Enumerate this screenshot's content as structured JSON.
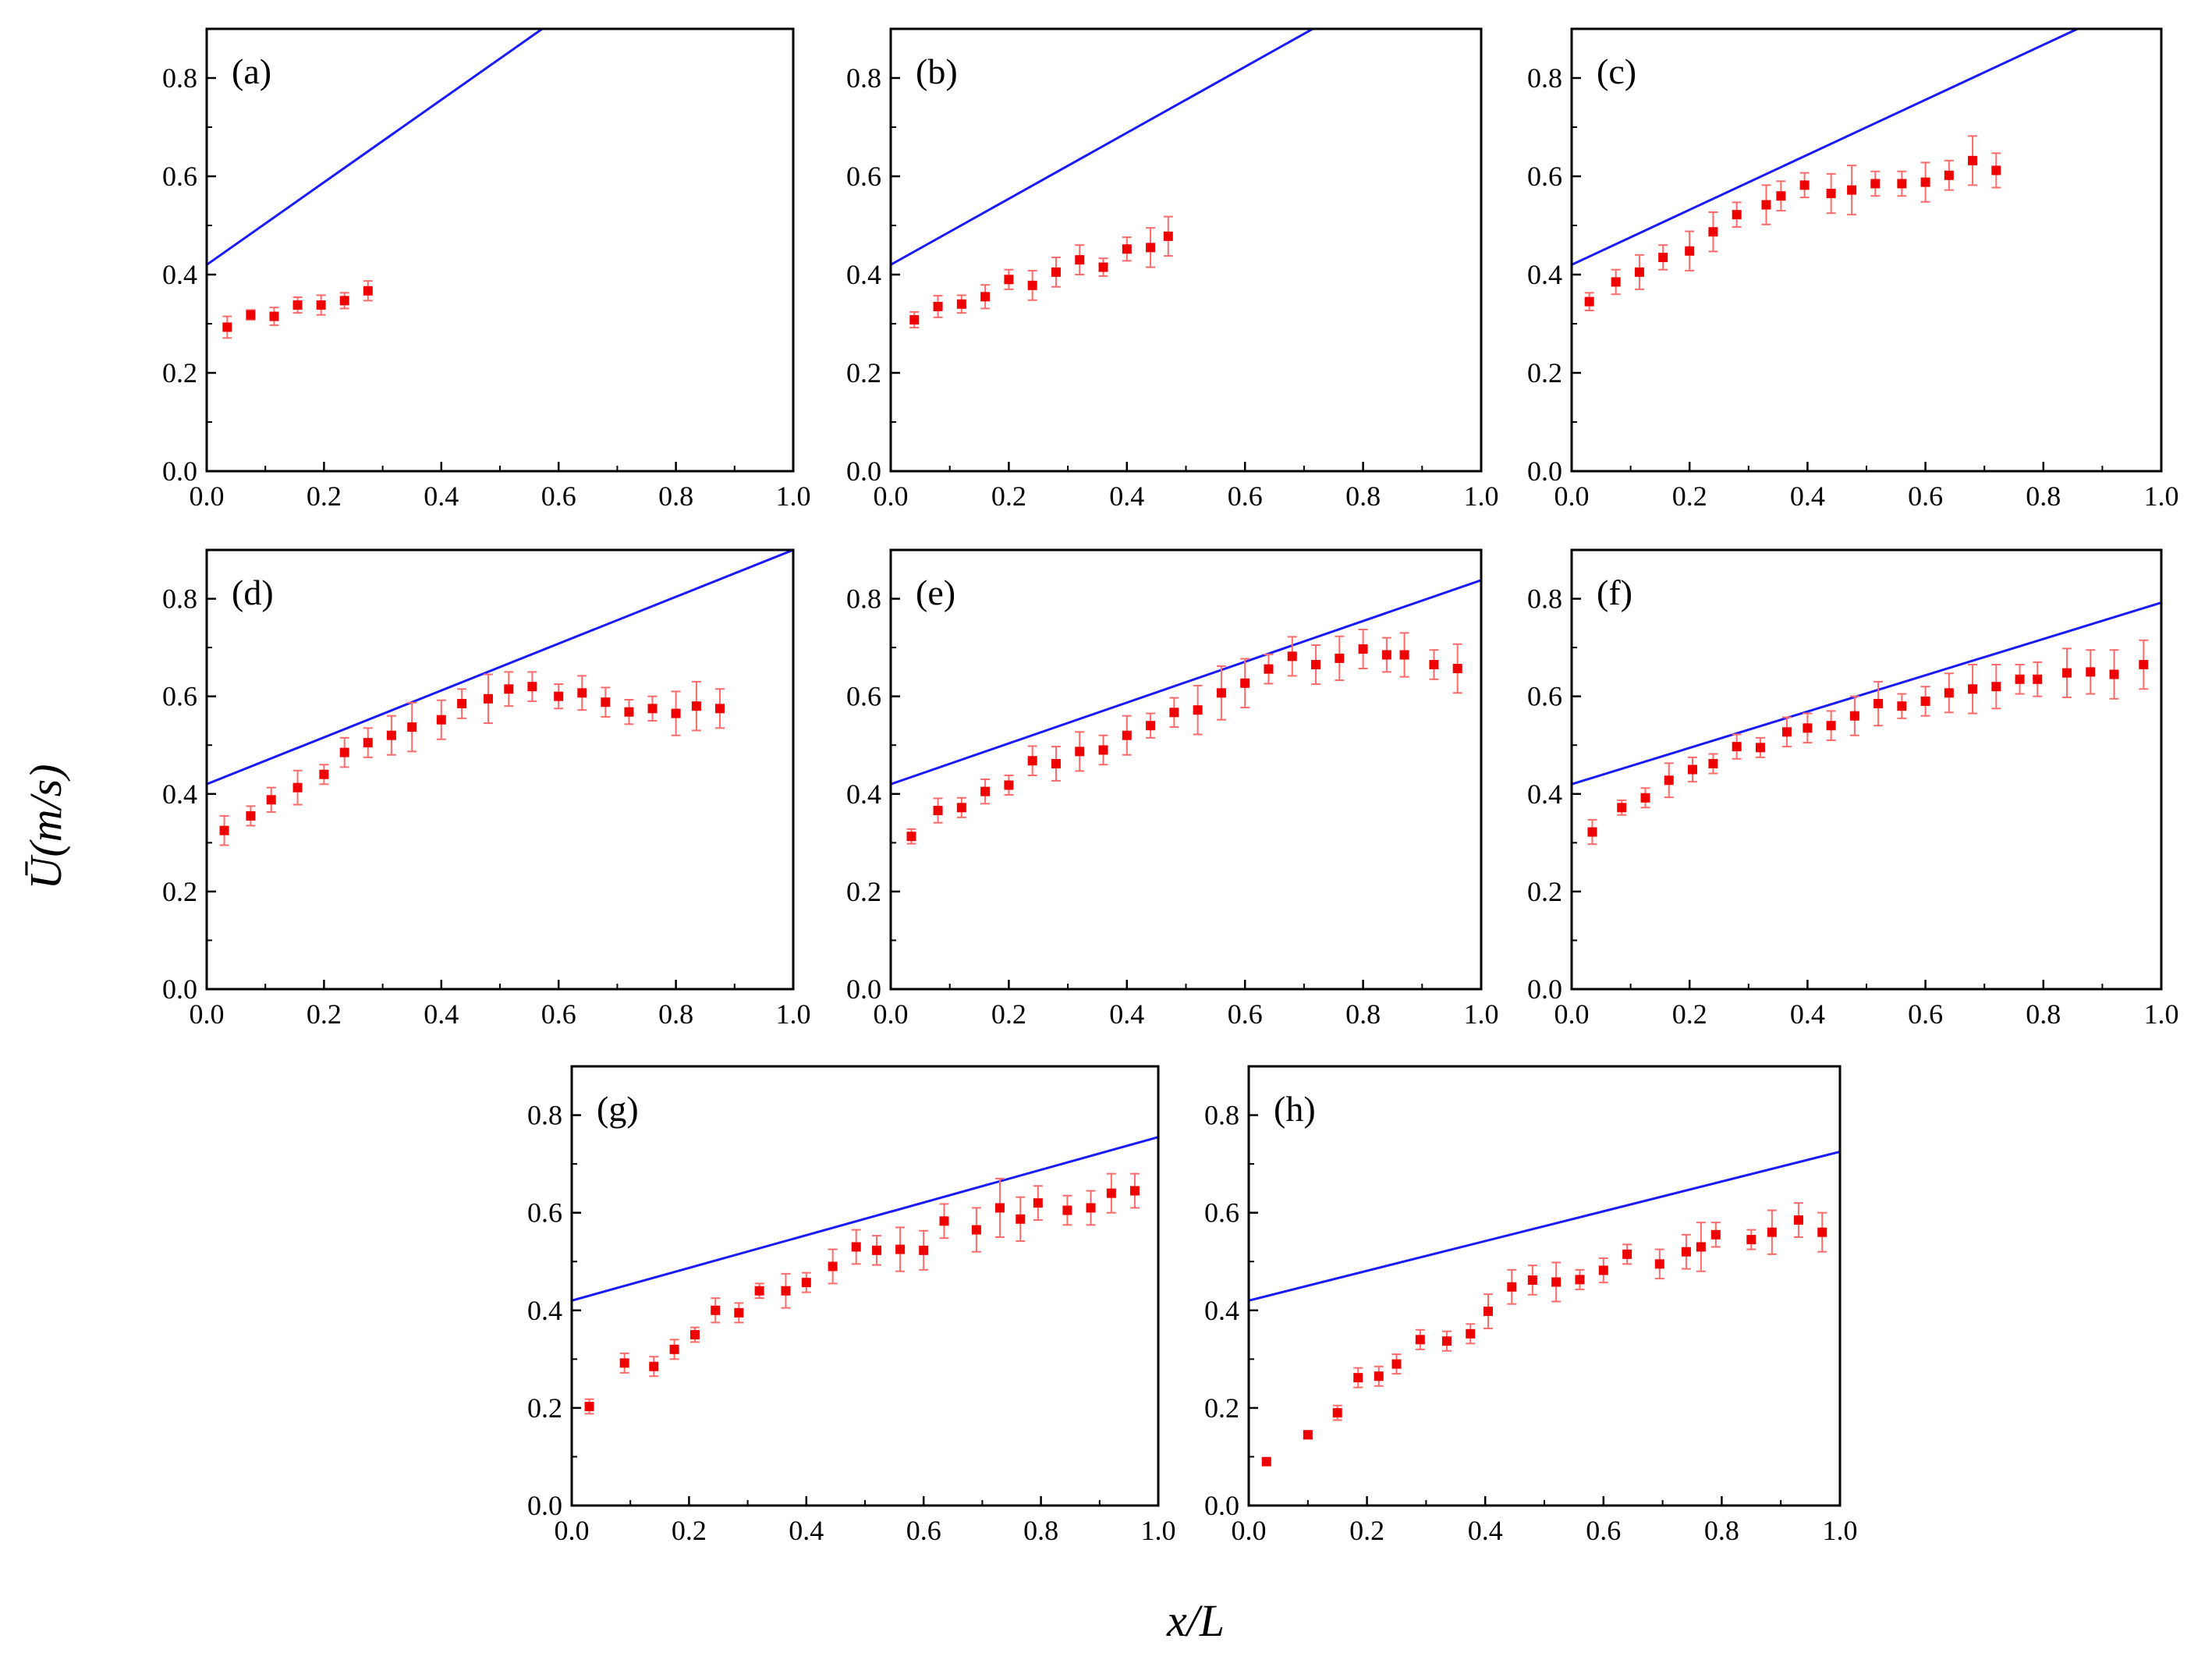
{
  "figure": {
    "x_title": "x/L",
    "y_title": "Ū(m/s)",
    "colors": {
      "line": "#1a1aff",
      "marker": "#ee0000",
      "errorbar": "#ff6a6a",
      "axis": "#000000"
    }
  },
  "chart_data": [
    {
      "type": "scatter",
      "label": "(a)",
      "xlim": [
        0.0,
        1.0
      ],
      "ylim": [
        0.0,
        0.9
      ],
      "xticks": [
        "0.0",
        "0.2",
        "0.4",
        "0.6",
        "0.8",
        "1.0"
      ],
      "yticks": [
        "0.0",
        "0.2",
        "0.4",
        "0.6",
        "0.8"
      ],
      "line": {
        "x": [
          0.0,
          0.572
        ],
        "y": [
          0.42,
          0.9
        ]
      },
      "points": [
        {
          "x": 0.035,
          "y": 0.293,
          "err": 0.022
        },
        {
          "x": 0.075,
          "y": 0.318,
          "err": 0.01
        },
        {
          "x": 0.115,
          "y": 0.315,
          "err": 0.018
        },
        {
          "x": 0.155,
          "y": 0.338,
          "err": 0.016
        },
        {
          "x": 0.195,
          "y": 0.338,
          "err": 0.02
        },
        {
          "x": 0.235,
          "y": 0.347,
          "err": 0.016
        },
        {
          "x": 0.275,
          "y": 0.367,
          "err": 0.02
        }
      ]
    },
    {
      "type": "scatter",
      "label": "(b)",
      "xlim": [
        0.0,
        1.0
      ],
      "ylim": [
        0.0,
        0.9
      ],
      "xticks": [
        "0.0",
        "0.2",
        "0.4",
        "0.6",
        "0.8",
        "1.0"
      ],
      "yticks": [
        "0.0",
        "0.2",
        "0.4",
        "0.6",
        "0.8"
      ],
      "line": {
        "x": [
          0.0,
          0.715
        ],
        "y": [
          0.42,
          0.9
        ]
      },
      "points": [
        {
          "x": 0.04,
          "y": 0.308,
          "err": 0.016
        },
        {
          "x": 0.08,
          "y": 0.335,
          "err": 0.022
        },
        {
          "x": 0.12,
          "y": 0.34,
          "err": 0.018
        },
        {
          "x": 0.16,
          "y": 0.355,
          "err": 0.024
        },
        {
          "x": 0.2,
          "y": 0.39,
          "err": 0.02
        },
        {
          "x": 0.24,
          "y": 0.378,
          "err": 0.03
        },
        {
          "x": 0.28,
          "y": 0.405,
          "err": 0.03
        },
        {
          "x": 0.32,
          "y": 0.43,
          "err": 0.03
        },
        {
          "x": 0.36,
          "y": 0.415,
          "err": 0.018
        },
        {
          "x": 0.4,
          "y": 0.452,
          "err": 0.024
        },
        {
          "x": 0.44,
          "y": 0.455,
          "err": 0.04
        },
        {
          "x": 0.47,
          "y": 0.478,
          "err": 0.04
        }
      ]
    },
    {
      "type": "scatter",
      "label": "(c)",
      "xlim": [
        0.0,
        1.0
      ],
      "ylim": [
        0.0,
        0.9
      ],
      "xticks": [
        "0.0",
        "0.2",
        "0.4",
        "0.6",
        "0.8",
        "1.0"
      ],
      "yticks": [
        "0.0",
        "0.2",
        "0.4",
        "0.6",
        "0.8"
      ],
      "line": {
        "x": [
          0.0,
          0.858
        ],
        "y": [
          0.42,
          0.9
        ]
      },
      "points": [
        {
          "x": 0.03,
          "y": 0.345,
          "err": 0.018
        },
        {
          "x": 0.075,
          "y": 0.385,
          "err": 0.025
        },
        {
          "x": 0.115,
          "y": 0.405,
          "err": 0.035
        },
        {
          "x": 0.155,
          "y": 0.435,
          "err": 0.025
        },
        {
          "x": 0.2,
          "y": 0.448,
          "err": 0.04
        },
        {
          "x": 0.24,
          "y": 0.487,
          "err": 0.04
        },
        {
          "x": 0.28,
          "y": 0.522,
          "err": 0.025
        },
        {
          "x": 0.33,
          "y": 0.542,
          "err": 0.04
        },
        {
          "x": 0.355,
          "y": 0.56,
          "err": 0.03
        },
        {
          "x": 0.395,
          "y": 0.582,
          "err": 0.025
        },
        {
          "x": 0.44,
          "y": 0.565,
          "err": 0.04
        },
        {
          "x": 0.475,
          "y": 0.572,
          "err": 0.05
        },
        {
          "x": 0.515,
          "y": 0.585,
          "err": 0.025
        },
        {
          "x": 0.56,
          "y": 0.585,
          "err": 0.025
        },
        {
          "x": 0.6,
          "y": 0.588,
          "err": 0.04
        },
        {
          "x": 0.64,
          "y": 0.602,
          "err": 0.03
        },
        {
          "x": 0.68,
          "y": 0.632,
          "err": 0.05
        },
        {
          "x": 0.72,
          "y": 0.612,
          "err": 0.035
        }
      ]
    },
    {
      "type": "scatter",
      "label": "(d)",
      "xlim": [
        0.0,
        1.0
      ],
      "ylim": [
        0.0,
        0.9
      ],
      "xticks": [
        "0.0",
        "0.2",
        "0.4",
        "0.6",
        "0.8",
        "1.0"
      ],
      "yticks": [
        "0.0",
        "0.2",
        "0.4",
        "0.6",
        "0.8"
      ],
      "line": {
        "x": [
          0.0,
          1.0
        ],
        "y": [
          0.42,
          0.9
        ]
      },
      "points": [
        {
          "x": 0.03,
          "y": 0.325,
          "err": 0.03
        },
        {
          "x": 0.075,
          "y": 0.355,
          "err": 0.02
        },
        {
          "x": 0.11,
          "y": 0.388,
          "err": 0.025
        },
        {
          "x": 0.155,
          "y": 0.413,
          "err": 0.035
        },
        {
          "x": 0.2,
          "y": 0.44,
          "err": 0.02
        },
        {
          "x": 0.235,
          "y": 0.485,
          "err": 0.03
        },
        {
          "x": 0.275,
          "y": 0.505,
          "err": 0.03
        },
        {
          "x": 0.315,
          "y": 0.52,
          "err": 0.04
        },
        {
          "x": 0.35,
          "y": 0.537,
          "err": 0.05
        },
        {
          "x": 0.4,
          "y": 0.552,
          "err": 0.04
        },
        {
          "x": 0.435,
          "y": 0.585,
          "err": 0.03
        },
        {
          "x": 0.48,
          "y": 0.595,
          "err": 0.05
        },
        {
          "x": 0.515,
          "y": 0.615,
          "err": 0.035
        },
        {
          "x": 0.555,
          "y": 0.62,
          "err": 0.03
        },
        {
          "x": 0.6,
          "y": 0.6,
          "err": 0.025
        },
        {
          "x": 0.64,
          "y": 0.607,
          "err": 0.035
        },
        {
          "x": 0.68,
          "y": 0.588,
          "err": 0.03
        },
        {
          "x": 0.72,
          "y": 0.568,
          "err": 0.025
        },
        {
          "x": 0.76,
          "y": 0.575,
          "err": 0.025
        },
        {
          "x": 0.8,
          "y": 0.565,
          "err": 0.045
        },
        {
          "x": 0.835,
          "y": 0.58,
          "err": 0.05
        },
        {
          "x": 0.875,
          "y": 0.575,
          "err": 0.04
        }
      ]
    },
    {
      "type": "scatter",
      "label": "(e)",
      "xlim": [
        0.0,
        1.0
      ],
      "ylim": [
        0.0,
        0.9
      ],
      "xticks": [
        "0.0",
        "0.2",
        "0.4",
        "0.6",
        "0.8",
        "1.0"
      ],
      "yticks": [
        "0.0",
        "0.2",
        "0.4",
        "0.6",
        "0.8"
      ],
      "line": {
        "x": [
          0.0,
          1.0
        ],
        "y": [
          0.42,
          0.838
        ]
      },
      "points": [
        {
          "x": 0.035,
          "y": 0.313,
          "err": 0.015
        },
        {
          "x": 0.08,
          "y": 0.366,
          "err": 0.025
        },
        {
          "x": 0.12,
          "y": 0.372,
          "err": 0.02
        },
        {
          "x": 0.16,
          "y": 0.405,
          "err": 0.025
        },
        {
          "x": 0.2,
          "y": 0.418,
          "err": 0.02
        },
        {
          "x": 0.24,
          "y": 0.468,
          "err": 0.03
        },
        {
          "x": 0.28,
          "y": 0.462,
          "err": 0.035
        },
        {
          "x": 0.32,
          "y": 0.487,
          "err": 0.04
        },
        {
          "x": 0.36,
          "y": 0.49,
          "err": 0.03
        },
        {
          "x": 0.4,
          "y": 0.52,
          "err": 0.04
        },
        {
          "x": 0.44,
          "y": 0.54,
          "err": 0.025
        },
        {
          "x": 0.48,
          "y": 0.567,
          "err": 0.03
        },
        {
          "x": 0.52,
          "y": 0.572,
          "err": 0.05
        },
        {
          "x": 0.56,
          "y": 0.607,
          "err": 0.055
        },
        {
          "x": 0.6,
          "y": 0.627,
          "err": 0.05
        },
        {
          "x": 0.64,
          "y": 0.656,
          "err": 0.03
        },
        {
          "x": 0.68,
          "y": 0.682,
          "err": 0.04
        },
        {
          "x": 0.72,
          "y": 0.665,
          "err": 0.04
        },
        {
          "x": 0.76,
          "y": 0.678,
          "err": 0.045
        },
        {
          "x": 0.8,
          "y": 0.697,
          "err": 0.04
        },
        {
          "x": 0.84,
          "y": 0.685,
          "err": 0.035
        },
        {
          "x": 0.87,
          "y": 0.685,
          "err": 0.045
        },
        {
          "x": 0.92,
          "y": 0.665,
          "err": 0.03
        },
        {
          "x": 0.96,
          "y": 0.657,
          "err": 0.05
        }
      ]
    },
    {
      "type": "scatter",
      "label": "(f)",
      "xlim": [
        0.0,
        1.0
      ],
      "ylim": [
        0.0,
        0.9
      ],
      "xticks": [
        "0.0",
        "0.2",
        "0.4",
        "0.6",
        "0.8",
        "1.0"
      ],
      "yticks": [
        "0.0",
        "0.2",
        "0.4",
        "0.6",
        "0.8"
      ],
      "line": {
        "x": [
          0.0,
          1.0
        ],
        "y": [
          0.42,
          0.792
        ]
      },
      "points": [
        {
          "x": 0.035,
          "y": 0.322,
          "err": 0.025
        },
        {
          "x": 0.085,
          "y": 0.372,
          "err": 0.015
        },
        {
          "x": 0.125,
          "y": 0.392,
          "err": 0.02
        },
        {
          "x": 0.165,
          "y": 0.428,
          "err": 0.035
        },
        {
          "x": 0.205,
          "y": 0.45,
          "err": 0.025
        },
        {
          "x": 0.24,
          "y": 0.462,
          "err": 0.02
        },
        {
          "x": 0.28,
          "y": 0.497,
          "err": 0.025
        },
        {
          "x": 0.32,
          "y": 0.495,
          "err": 0.02
        },
        {
          "x": 0.365,
          "y": 0.527,
          "err": 0.03
        },
        {
          "x": 0.4,
          "y": 0.535,
          "err": 0.03
        },
        {
          "x": 0.44,
          "y": 0.54,
          "err": 0.03
        },
        {
          "x": 0.48,
          "y": 0.56,
          "err": 0.04
        },
        {
          "x": 0.52,
          "y": 0.585,
          "err": 0.045
        },
        {
          "x": 0.56,
          "y": 0.58,
          "err": 0.025
        },
        {
          "x": 0.6,
          "y": 0.59,
          "err": 0.03
        },
        {
          "x": 0.64,
          "y": 0.607,
          "err": 0.04
        },
        {
          "x": 0.68,
          "y": 0.615,
          "err": 0.05
        },
        {
          "x": 0.72,
          "y": 0.62,
          "err": 0.045
        },
        {
          "x": 0.76,
          "y": 0.635,
          "err": 0.03
        },
        {
          "x": 0.79,
          "y": 0.635,
          "err": 0.035
        },
        {
          "x": 0.84,
          "y": 0.648,
          "err": 0.05
        },
        {
          "x": 0.88,
          "y": 0.65,
          "err": 0.045
        },
        {
          "x": 0.92,
          "y": 0.645,
          "err": 0.05
        },
        {
          "x": 0.97,
          "y": 0.665,
          "err": 0.05
        }
      ]
    },
    {
      "type": "scatter",
      "label": "(g)",
      "xlim": [
        0.0,
        1.0
      ],
      "ylim": [
        0.0,
        0.9
      ],
      "xticks": [
        "0.0",
        "0.2",
        "0.4",
        "0.6",
        "0.8",
        "1.0"
      ],
      "yticks": [
        "0.0",
        "0.2",
        "0.4",
        "0.6",
        "0.8"
      ],
      "line": {
        "x": [
          0.0,
          1.0
        ],
        "y": [
          0.42,
          0.755
        ]
      },
      "points": [
        {
          "x": 0.03,
          "y": 0.203,
          "err": 0.015
        },
        {
          "x": 0.09,
          "y": 0.292,
          "err": 0.02
        },
        {
          "x": 0.14,
          "y": 0.285,
          "err": 0.02
        },
        {
          "x": 0.175,
          "y": 0.32,
          "err": 0.02
        },
        {
          "x": 0.21,
          "y": 0.35,
          "err": 0.015
        },
        {
          "x": 0.245,
          "y": 0.4,
          "err": 0.025
        },
        {
          "x": 0.285,
          "y": 0.395,
          "err": 0.02
        },
        {
          "x": 0.32,
          "y": 0.44,
          "err": 0.015
        },
        {
          "x": 0.365,
          "y": 0.44,
          "err": 0.035
        },
        {
          "x": 0.4,
          "y": 0.457,
          "err": 0.02
        },
        {
          "x": 0.445,
          "y": 0.49,
          "err": 0.035
        },
        {
          "x": 0.485,
          "y": 0.53,
          "err": 0.035
        },
        {
          "x": 0.52,
          "y": 0.523,
          "err": 0.03
        },
        {
          "x": 0.56,
          "y": 0.525,
          "err": 0.045
        },
        {
          "x": 0.6,
          "y": 0.523,
          "err": 0.04
        },
        {
          "x": 0.635,
          "y": 0.583,
          "err": 0.035
        },
        {
          "x": 0.69,
          "y": 0.565,
          "err": 0.045
        },
        {
          "x": 0.73,
          "y": 0.61,
          "err": 0.06
        },
        {
          "x": 0.765,
          "y": 0.587,
          "err": 0.045
        },
        {
          "x": 0.795,
          "y": 0.62,
          "err": 0.035
        },
        {
          "x": 0.845,
          "y": 0.605,
          "err": 0.03
        },
        {
          "x": 0.885,
          "y": 0.61,
          "err": 0.035
        },
        {
          "x": 0.92,
          "y": 0.64,
          "err": 0.04
        },
        {
          "x": 0.96,
          "y": 0.645,
          "err": 0.035
        }
      ]
    },
    {
      "type": "scatter",
      "label": "(h)",
      "xlim": [
        0.0,
        1.0
      ],
      "ylim": [
        0.0,
        0.9
      ],
      "xticks": [
        "0.0",
        "0.2",
        "0.4",
        "0.6",
        "0.8",
        "1.0"
      ],
      "yticks": [
        "0.0",
        "0.2",
        "0.4",
        "0.6",
        "0.8"
      ],
      "line": {
        "x": [
          0.0,
          1.0
        ],
        "y": [
          0.42,
          0.725
        ]
      },
      "points": [
        {
          "x": 0.03,
          "y": 0.09,
          "err": 0.005
        },
        {
          "x": 0.1,
          "y": 0.145,
          "err": 0.008
        },
        {
          "x": 0.15,
          "y": 0.19,
          "err": 0.015
        },
        {
          "x": 0.185,
          "y": 0.262,
          "err": 0.02
        },
        {
          "x": 0.22,
          "y": 0.265,
          "err": 0.02
        },
        {
          "x": 0.25,
          "y": 0.29,
          "err": 0.02
        },
        {
          "x": 0.29,
          "y": 0.34,
          "err": 0.02
        },
        {
          "x": 0.335,
          "y": 0.337,
          "err": 0.02
        },
        {
          "x": 0.375,
          "y": 0.352,
          "err": 0.02
        },
        {
          "x": 0.405,
          "y": 0.398,
          "err": 0.035
        },
        {
          "x": 0.445,
          "y": 0.448,
          "err": 0.035
        },
        {
          "x": 0.48,
          "y": 0.462,
          "err": 0.03
        },
        {
          "x": 0.52,
          "y": 0.458,
          "err": 0.04
        },
        {
          "x": 0.56,
          "y": 0.463,
          "err": 0.02
        },
        {
          "x": 0.6,
          "y": 0.482,
          "err": 0.025
        },
        {
          "x": 0.64,
          "y": 0.515,
          "err": 0.02
        },
        {
          "x": 0.695,
          "y": 0.495,
          "err": 0.03
        },
        {
          "x": 0.74,
          "y": 0.52,
          "err": 0.035
        },
        {
          "x": 0.765,
          "y": 0.53,
          "err": 0.05
        },
        {
          "x": 0.79,
          "y": 0.555,
          "err": 0.025
        },
        {
          "x": 0.85,
          "y": 0.545,
          "err": 0.02
        },
        {
          "x": 0.885,
          "y": 0.56,
          "err": 0.045
        },
        {
          "x": 0.93,
          "y": 0.585,
          "err": 0.035
        },
        {
          "x": 0.97,
          "y": 0.56,
          "err": 0.04
        }
      ]
    }
  ]
}
